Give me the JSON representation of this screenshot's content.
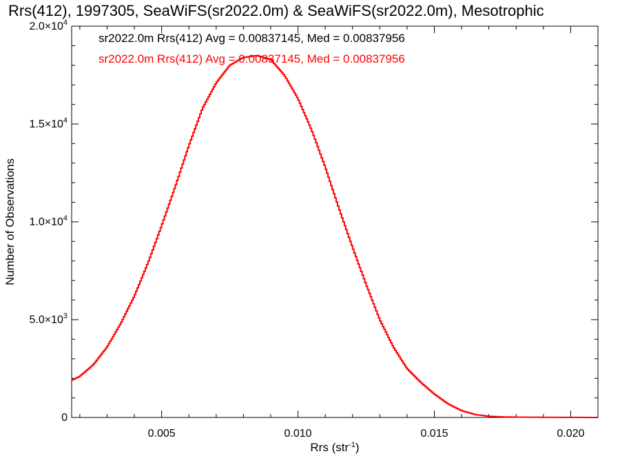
{
  "chart_data": {
    "type": "line",
    "step": true,
    "title": "Rrs(412), 1997305, SeaWiFS(sr2022.0m) & SeaWiFS(sr2022.0m), Mesotrophic",
    "xlabel": "Rrs (str",
    "xlabel_sup": "-1",
    "xlabel_close": ")",
    "ylabel": "Number of Observations",
    "xlim": [
      0.0017,
      0.021
    ],
    "ylim": [
      0,
      20000
    ],
    "x_ticks": [
      {
        "value": 0.005,
        "label": "0.005"
      },
      {
        "value": 0.01,
        "label": "0.010"
      },
      {
        "value": 0.015,
        "label": "0.015"
      },
      {
        "value": 0.02,
        "label": "0.020"
      }
    ],
    "y_ticks": [
      {
        "value": 0,
        "mant": "0",
        "exp": ""
      },
      {
        "value": 5000,
        "mant": "5.0×10",
        "exp": "3"
      },
      {
        "value": 10000,
        "mant": "1.0×10",
        "exp": "4"
      },
      {
        "value": 15000,
        "mant": "1.5×10",
        "exp": "4"
      },
      {
        "value": 20000,
        "mant": "2.0×10",
        "exp": "4"
      }
    ],
    "annotations": [
      {
        "text": "sr2022.0m Rrs(412) Avg = 0.00837145, Med = 0.00837956",
        "color": "#000000"
      },
      {
        "text": "sr2022.0m Rrs(412) Avg = 0.00837145, Med = 0.00837956",
        "color": "#ff0000"
      }
    ],
    "series": [
      {
        "color": "#ff0000",
        "x": [
          0.0017,
          0.002,
          0.0025,
          0.003,
          0.0035,
          0.004,
          0.0045,
          0.005,
          0.0055,
          0.006,
          0.0065,
          0.007,
          0.0075,
          0.008,
          0.0085,
          0.009,
          0.0095,
          0.01,
          0.0105,
          0.011,
          0.0115,
          0.012,
          0.0125,
          0.013,
          0.0135,
          0.014,
          0.0145,
          0.015,
          0.0155,
          0.016,
          0.0165,
          0.017,
          0.0175,
          0.018,
          0.019,
          0.02,
          0.021
        ],
        "y": [
          1900,
          2100,
          2700,
          3600,
          4800,
          6200,
          7900,
          9800,
          11800,
          13900,
          15800,
          17100,
          18000,
          18400,
          18500,
          18300,
          17500,
          16300,
          14700,
          12800,
          10700,
          8700,
          6800,
          5000,
          3600,
          2500,
          1800,
          1200,
          700,
          350,
          150,
          60,
          30,
          20,
          10,
          5,
          0
        ]
      }
    ]
  }
}
